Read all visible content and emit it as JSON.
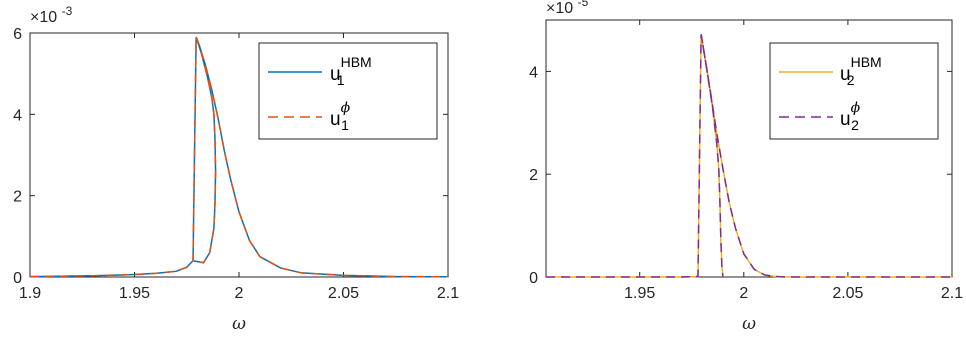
{
  "chart_data": [
    {
      "type": "line",
      "xlabel": "ω",
      "ylabel": "",
      "xlim": [
        1.9,
        2.1
      ],
      "ylim": [
        0,
        0.006
      ],
      "y_exponent_label": "×10",
      "y_exponent_power": "-3",
      "xticks": [
        1.9,
        1.95,
        2.0,
        2.05,
        2.1
      ],
      "xtick_labels": [
        "1.9",
        "1.95",
        "2",
        "2.05",
        "2.1"
      ],
      "yticks": [
        0,
        0.002,
        0.004,
        0.006
      ],
      "ytick_labels": [
        "0",
        "2",
        "4",
        "6"
      ],
      "legend_position": "top-right",
      "series": [
        {
          "name_base": "u",
          "name_sub": "1",
          "name_sup": "HBM",
          "color": "#0072BD",
          "dash": "solid",
          "x": [
            1.9,
            1.93,
            1.95,
            1.96,
            1.97,
            1.975,
            1.978,
            1.9795,
            1.98,
            1.982,
            1.984,
            1.986,
            1.987,
            1.988,
            1.9885,
            1.9888,
            1.9885,
            1.988,
            1.986,
            1.983,
            1.978,
            1.973,
            1.965,
            1.955,
            1.94,
            1.92,
            1.9
          ],
          "y": [
            1e-05,
            3e-05,
            6e-05,
            9e-05,
            0.00014,
            0.00024,
            0.0004,
            0.0007,
            0.0058,
            0.0054,
            0.0049,
            0.0044,
            0.0041,
            0.0038,
            0.0033,
            0.0025,
            0.0018,
            0.0012,
            0.0006,
            0.00035,
            0.00018,
            0.0001,
            6e-05,
            3e-05,
            1.5e-05,
            5e-06,
            0.0
          ],
          "branch_upper_x": [
            1.9795,
            1.981,
            1.984,
            1.987,
            1.99,
            1.993,
            1.996,
            2.0,
            2.005,
            2.01,
            2.02,
            2.03,
            2.05,
            2.075,
            2.1
          ],
          "branch_upper_y": [
            0.0059,
            0.0057,
            0.0052,
            0.0046,
            0.0039,
            0.0031,
            0.0024,
            0.0016,
            0.0009,
            0.0005,
            0.00022,
            0.0001,
            4e-05,
            1e-05,
            5e-06
          ]
        },
        {
          "name_base": "u",
          "name_sub": "1",
          "name_sup": "ϕ",
          "color": "#D95319",
          "dash": "dashed"
        }
      ]
    },
    {
      "type": "line",
      "xlabel": "ω",
      "ylabel": "",
      "xlim": [
        1.905,
        2.1
      ],
      "ylim": [
        0,
        5e-05
      ],
      "y_exponent_label": "×10",
      "y_exponent_power": "-5",
      "xticks": [
        1.95,
        2.0,
        2.05,
        2.1
      ],
      "xtick_labels": [
        "1.95",
        "2",
        "2.05",
        "2.1"
      ],
      "yticks": [
        0,
        2e-05,
        4e-05
      ],
      "ytick_labels": [
        "0",
        "2",
        "4"
      ],
      "legend_position": "top-right",
      "series": [
        {
          "name_base": "u",
          "name_sub": "2",
          "name_sup": "HBM",
          "color": "#EDB120",
          "dash": "solid",
          "x": [
            1.905,
            1.95,
            1.97,
            1.978,
            1.9795,
            1.981,
            1.984,
            1.987,
            1.99,
            1.993,
            1.996,
            2.0,
            2.005,
            2.01,
            2.015,
            2.02,
            2.05,
            2.1
          ],
          "y": [
            0.0,
            0.0,
            0.0,
            1e-07,
            4.72e-05,
            4.35e-05,
            3.6e-05,
            2.8e-05,
            2.1e-05,
            1.45e-05,
            9.5e-06,
            4.5e-06,
            1.5e-06,
            4e-07,
            1e-07,
            0.0,
            0.0,
            0.0
          ],
          "lower_branch_x": [
            1.9795,
            1.982,
            1.985,
            1.987,
            1.988,
            1.9885,
            1.989,
            1.9895,
            1.99
          ],
          "lower_branch_y": [
            4.72e-05,
            4.1e-05,
            3.3e-05,
            2.6e-05,
            2.1e-05,
            1.5e-05,
            7e-06,
            2e-06,
            0.0
          ]
        },
        {
          "name_base": "u",
          "name_sub": "2",
          "name_sup": "ϕ",
          "color": "#7E2F8E",
          "dash": "dashed"
        }
      ]
    }
  ]
}
